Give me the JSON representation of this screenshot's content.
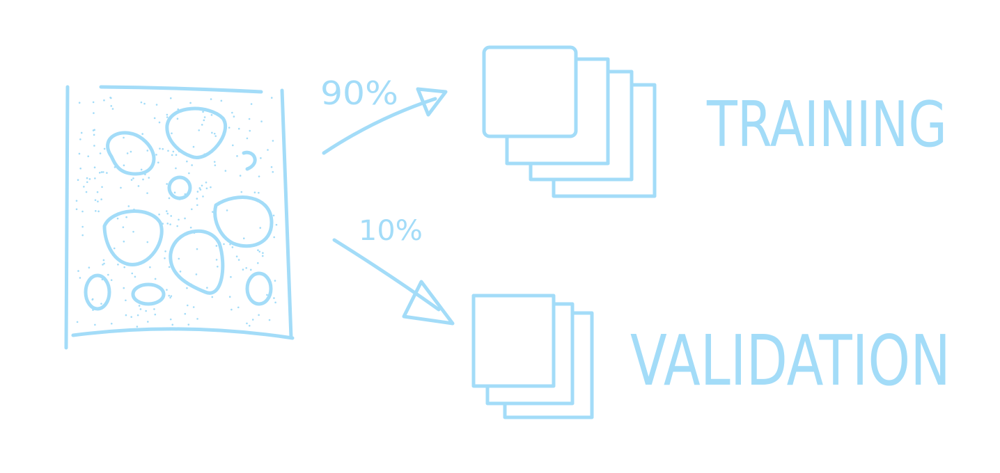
{
  "split": [
    {
      "percent": "90%",
      "set": "TRAINING"
    },
    {
      "percent": "10%",
      "set": "VALIDATION"
    }
  ]
}
